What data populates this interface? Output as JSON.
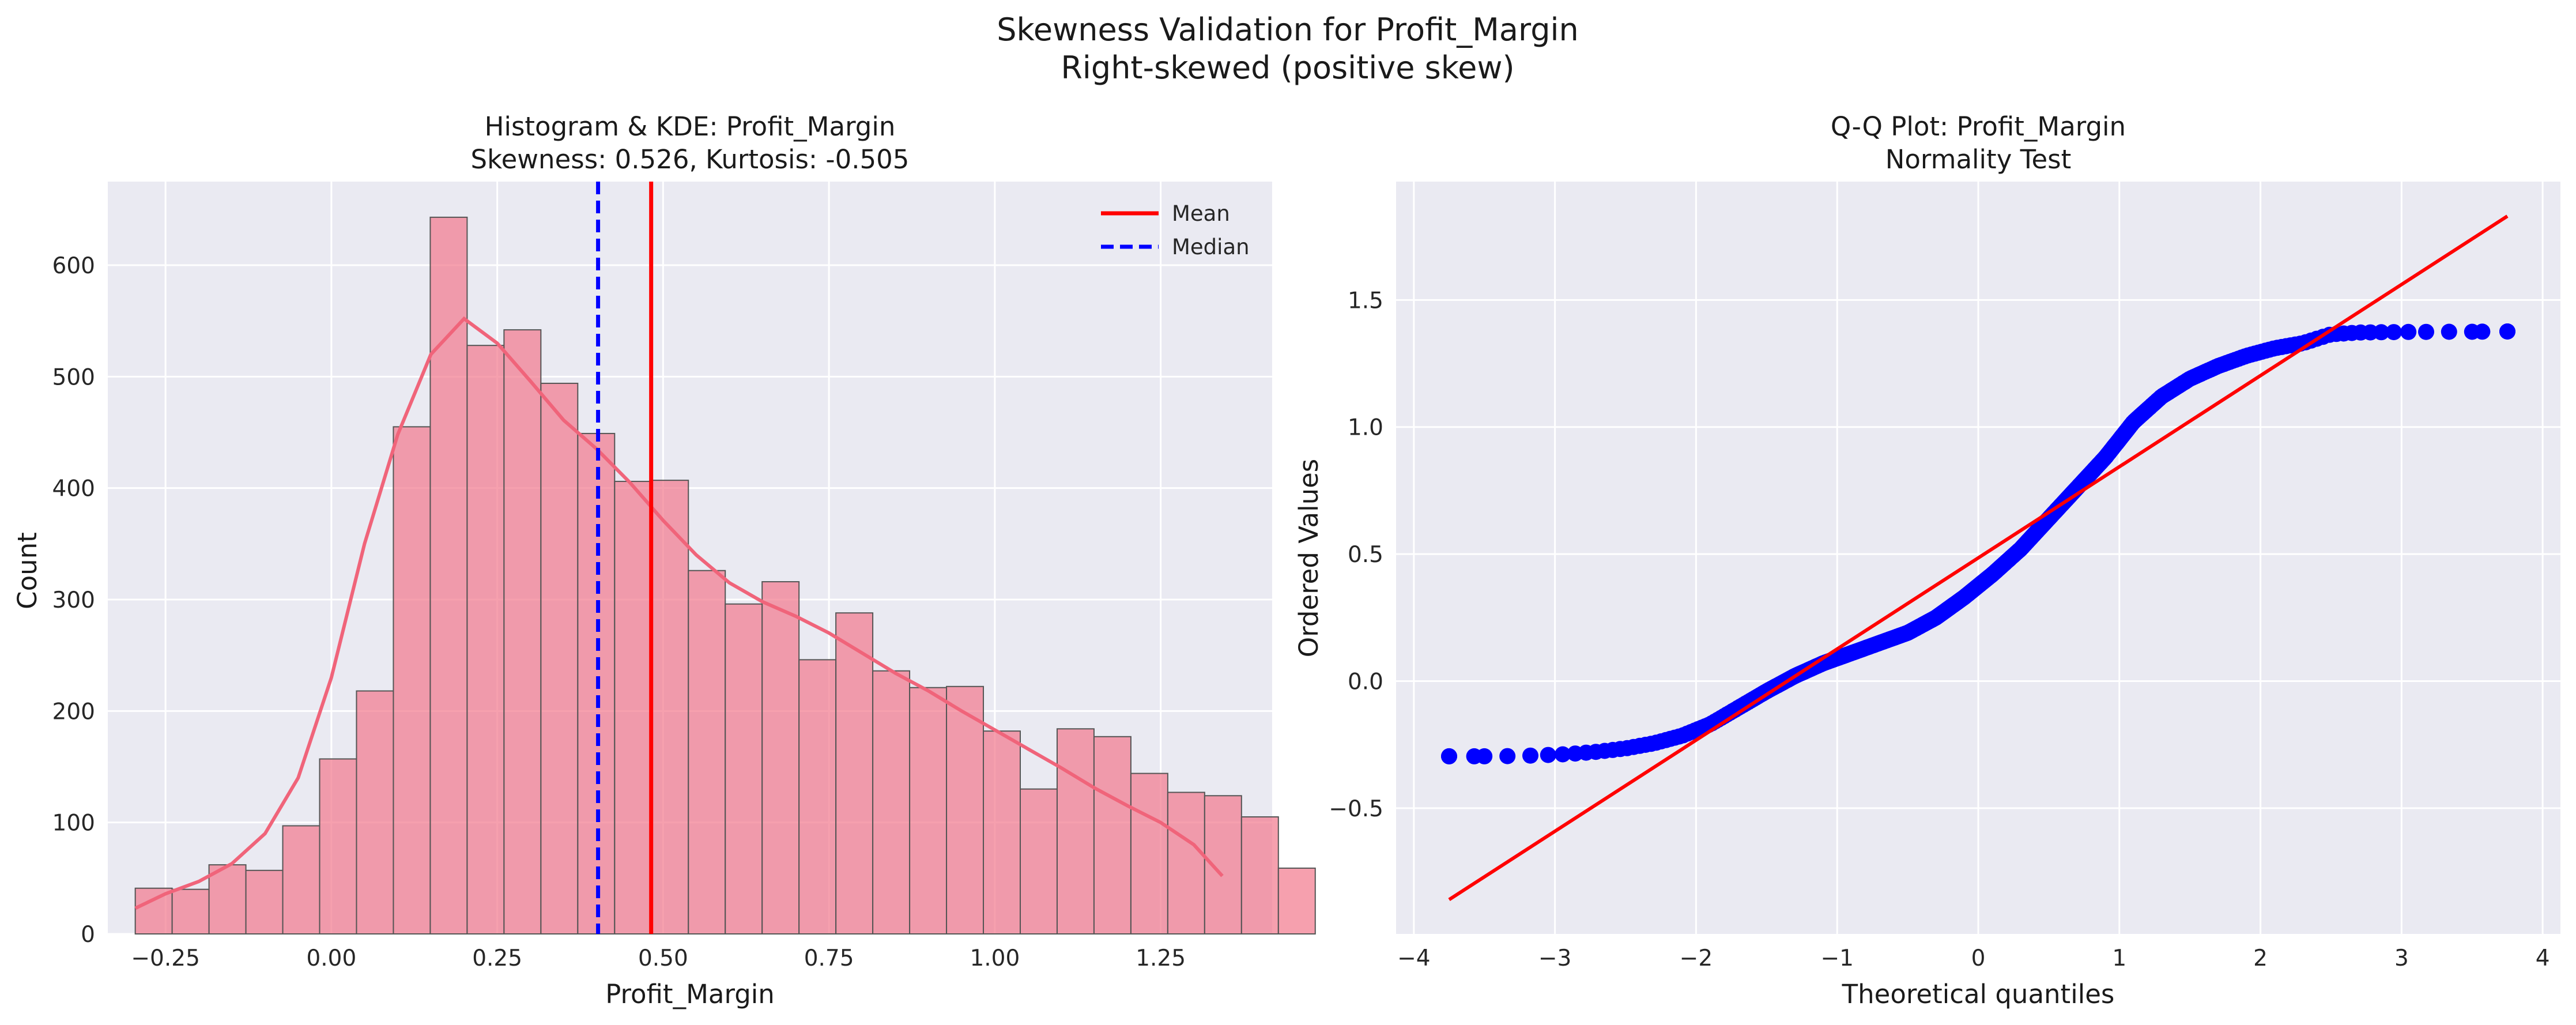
{
  "suptitle": [
    "Skewness Validation for Profit_Margin",
    "Right-skewed (positive skew)"
  ],
  "chart_data": [
    {
      "type": "bar",
      "subtype": "histogram+kde",
      "title": [
        "Histogram & KDE: Profit_Margin",
        "Skewness: 0.526, Kurtosis: -0.505"
      ],
      "xlabel": "Profit_Margin",
      "ylabel": "Count",
      "xlim": [
        -0.337,
        1.418
      ],
      "ylim": [
        0,
        675
      ],
      "xticks": [
        -0.25,
        0.0,
        0.25,
        0.5,
        0.75,
        1.0,
        1.25
      ],
      "xtick_labels": [
        "−0.25",
        "0.00",
        "0.25",
        "0.50",
        "0.75",
        "1.00",
        "1.25"
      ],
      "yticks": [
        0,
        100,
        200,
        300,
        400,
        500,
        600
      ],
      "ytick_labels": [
        "0",
        "100",
        "200",
        "300",
        "400",
        "500",
        "600"
      ],
      "bins": {
        "start": -0.2956,
        "width": 0.05558,
        "counts": [
          41,
          40,
          62,
          57,
          97,
          157,
          218,
          455,
          643,
          528,
          542,
          494,
          449,
          406,
          407,
          326,
          296,
          316,
          246,
          288,
          236,
          221,
          222,
          182,
          130,
          184,
          177,
          144,
          127,
          124,
          105,
          59
        ]
      },
      "kde": {
        "x": [
          -0.2956,
          -0.25,
          -0.2,
          -0.15,
          -0.1,
          -0.05,
          0.0,
          0.05,
          0.1,
          0.15,
          0.2,
          0.25,
          0.3,
          0.35,
          0.4,
          0.45,
          0.5,
          0.55,
          0.6,
          0.65,
          0.7,
          0.75,
          0.8,
          0.85,
          0.9,
          0.95,
          1.0,
          1.05,
          1.1,
          1.15,
          1.2,
          1.25,
          1.3,
          1.3429
        ],
        "y": [
          23,
          36,
          47,
          63,
          90,
          140,
          230,
          350,
          448,
          520,
          552,
          530,
          496,
          461,
          435,
          405,
          371,
          340,
          315,
          298,
          285,
          270,
          252,
          234,
          218,
          200,
          183,
          166,
          149,
          131,
          115,
          100,
          80,
          52
        ]
      },
      "vlines": [
        {
          "name": "Mean",
          "x": 0.482,
          "color": "#ff0000",
          "style": "solid"
        },
        {
          "name": "Median",
          "x": 0.402,
          "color": "#0000ff",
          "style": "dashed"
        }
      ],
      "bar_color": "#f37b8f",
      "kde_color": "#f0647a",
      "legend_placement": "top-right",
      "grid": true
    },
    {
      "type": "scatter",
      "subtype": "qq-plot",
      "title": [
        "Q-Q Plot: Profit_Margin",
        "Normality Test"
      ],
      "xlabel": "Theoretical quantiles",
      "ylabel": "Ordered Values",
      "xlim": [
        -4.126,
        4.126
      ],
      "ylim": [
        -0.995,
        1.966
      ],
      "xticks": [
        -4,
        -3,
        -2,
        -1,
        0,
        1,
        2,
        3,
        4
      ],
      "xtick_labels": [
        "−4",
        "−3",
        "−2",
        "−1",
        "0",
        "1",
        "2",
        "3",
        "4"
      ],
      "yticks": [
        -0.5,
        0.0,
        0.5,
        1.0,
        1.5
      ],
      "ytick_labels": [
        "−0.5",
        "0.0",
        "0.5",
        "1.0",
        "1.5"
      ],
      "fit_line": {
        "x": [
          -3.75,
          3.75
        ],
        "y": [
          -0.86,
          1.83
        ],
        "color": "#ff0000"
      },
      "point_color": "#0000ff",
      "quantile_points": [
        [
          -3.75,
          -0.296
        ],
        [
          -3.5,
          -0.296
        ],
        [
          -3.3,
          -0.295
        ],
        [
          -3.1,
          -0.292
        ],
        [
          -2.9,
          -0.287
        ],
        [
          -2.7,
          -0.278
        ],
        [
          -2.5,
          -0.265
        ],
        [
          -2.3,
          -0.245
        ],
        [
          -2.1,
          -0.215
        ],
        [
          -1.9,
          -0.17
        ],
        [
          -1.7,
          -0.105
        ],
        [
          -1.5,
          -0.04
        ],
        [
          -1.3,
          0.02
        ],
        [
          -1.1,
          0.07
        ],
        [
          -0.9,
          0.11
        ],
        [
          -0.7,
          0.15
        ],
        [
          -0.5,
          0.19
        ],
        [
          -0.3,
          0.25
        ],
        [
          -0.1,
          0.33
        ],
        [
          0.1,
          0.42
        ],
        [
          0.3,
          0.52
        ],
        [
          0.5,
          0.64
        ],
        [
          0.7,
          0.76
        ],
        [
          0.9,
          0.88
        ],
        [
          1.1,
          1.02
        ],
        [
          1.3,
          1.12
        ],
        [
          1.5,
          1.19
        ],
        [
          1.7,
          1.24
        ],
        [
          1.9,
          1.28
        ],
        [
          2.1,
          1.31
        ],
        [
          2.3,
          1.33
        ],
        [
          2.5,
          1.365
        ],
        [
          2.7,
          1.372
        ],
        [
          3.0,
          1.374
        ],
        [
          3.3,
          1.375
        ],
        [
          3.5,
          1.375
        ],
        [
          3.75,
          1.376
        ]
      ],
      "grid": true
    }
  ]
}
